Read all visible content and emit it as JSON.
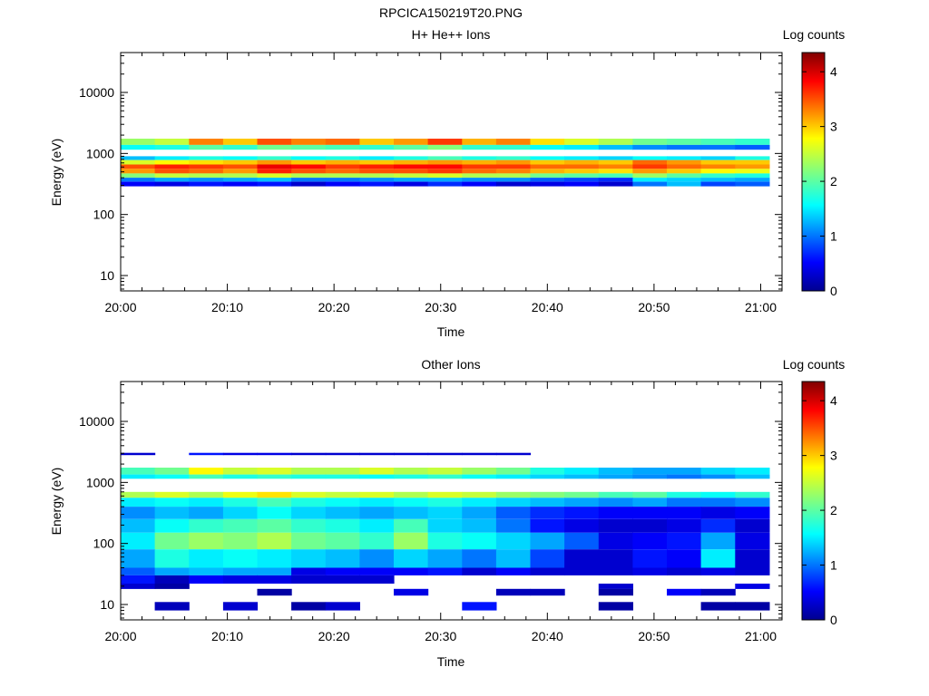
{
  "figure": {
    "filename": "RPCICA150219T20.PNG"
  },
  "chart_data": [
    {
      "type": "heatmap",
      "title": "H+ He++ Ions",
      "xlabel": "Time",
      "ylabel": "Energy (eV)",
      "x_ticks": [
        "20:00",
        "20:10",
        "20:20",
        "20:30",
        "20:40",
        "20:50",
        "21:00"
      ],
      "y_ticks": [
        "10",
        "100",
        "1000",
        "10000"
      ],
      "y_scale": "log",
      "ylim": [
        5.6,
        45000
      ],
      "xlim": [
        "20:00",
        "21:02"
      ],
      "colorbar": {
        "label": "Log counts",
        "ticks": [
          "0",
          "1",
          "2",
          "3",
          "4"
        ],
        "range": [
          0,
          4.35
        ],
        "colormap": "jet"
      },
      "time_bins": 19,
      "time_bin_start_minutes": 0,
      "time_bin_width_minutes": 3.2,
      "energy_bands": [
        {
          "e_low": 1380,
          "e_high": 1750,
          "values": [
            2.3,
            2.5,
            3.3,
            3.0,
            3.5,
            3.3,
            3.4,
            3.0,
            3.2,
            3.6,
            3.1,
            3.3,
            2.9,
            2.6,
            2.4,
            2.1,
            2.0,
            1.9,
            1.8
          ]
        },
        {
          "e_low": 1150,
          "e_high": 1380,
          "values": [
            1.6,
            1.7,
            2.0,
            1.8,
            2.1,
            2.0,
            1.9,
            1.8,
            2.0,
            2.2,
            1.8,
            1.8,
            1.6,
            1.5,
            1.3,
            1.1,
            1.0,
            1.0,
            0.9
          ]
        },
        {
          "e_low": 780,
          "e_high": 900,
          "values": [
            1.3,
            1.5,
            1.7,
            1.6,
            1.8,
            1.6,
            1.7,
            1.5,
            1.7,
            1.9,
            1.7,
            1.8,
            1.6,
            1.5,
            1.4,
            1.6,
            1.5,
            1.4,
            1.7
          ]
        },
        {
          "e_low": 660,
          "e_high": 780,
          "values": [
            2.6,
            2.8,
            2.9,
            3.0,
            3.2,
            3.0,
            3.1,
            3.0,
            3.1,
            3.2,
            3.1,
            3.2,
            3.0,
            3.1,
            3.0,
            3.4,
            3.2,
            3.0,
            3.0
          ]
        },
        {
          "e_low": 560,
          "e_high": 660,
          "values": [
            3.5,
            3.7,
            3.6,
            3.5,
            3.9,
            3.8,
            3.6,
            3.7,
            3.8,
            3.8,
            3.6,
            3.6,
            3.4,
            3.4,
            3.3,
            3.6,
            3.4,
            3.3,
            3.2
          ]
        },
        {
          "e_low": 470,
          "e_high": 560,
          "values": [
            3.2,
            3.5,
            3.4,
            3.2,
            3.7,
            3.5,
            3.4,
            3.5,
            3.5,
            3.6,
            3.4,
            3.3,
            3.1,
            3.0,
            2.9,
            3.2,
            3.0,
            2.8,
            2.7
          ]
        },
        {
          "e_low": 400,
          "e_high": 470,
          "values": [
            2.2,
            2.5,
            2.4,
            2.4,
            2.6,
            2.4,
            2.4,
            2.4,
            2.5,
            2.6,
            2.4,
            2.4,
            2.1,
            2.0,
            1.9,
            2.3,
            2.0,
            1.8,
            1.7
          ]
        },
        {
          "e_low": 345,
          "e_high": 400,
          "values": [
            1.0,
            1.2,
            1.1,
            1.2,
            1.3,
            1.0,
            1.0,
            1.1,
            1.2,
            1.2,
            1.1,
            1.1,
            0.9,
            0.8,
            0.7,
            1.5,
            1.4,
            1.3,
            1.2
          ]
        },
        {
          "e_low": 290,
          "e_high": 345,
          "values": [
            0.5,
            0.4,
            0.6,
            0.5,
            0.6,
            0.3,
            0.5,
            0.6,
            0.4,
            0.7,
            0.5,
            0.3,
            0.4,
            0.5,
            0.3,
            1.0,
            1.3,
            0.8,
            0.9
          ]
        }
      ]
    },
    {
      "type": "heatmap",
      "title": "Other Ions",
      "xlabel": "Time",
      "ylabel": "Energy (eV)",
      "x_ticks": [
        "20:00",
        "20:10",
        "20:20",
        "20:30",
        "20:40",
        "20:50",
        "21:00"
      ],
      "y_ticks": [
        "10",
        "100",
        "1000",
        "10000"
      ],
      "y_scale": "log",
      "ylim": [
        5.6,
        45000
      ],
      "xlim": [
        "20:00",
        "21:02"
      ],
      "colorbar": {
        "label": "Log counts",
        "ticks": [
          "0",
          "1",
          "2",
          "3",
          "4"
        ],
        "range": [
          0,
          4.35
        ],
        "colormap": "jet"
      },
      "time_bins": 19,
      "time_bin_start_minutes": 0,
      "time_bin_width_minutes": 3.2,
      "energy_bands": [
        {
          "e_low": 2800,
          "e_high": 3050,
          "values": [
            0.3,
            null,
            0.6,
            0.4,
            0.4,
            0.3,
            0.3,
            0.3,
            0.3,
            0.3,
            0.3,
            0.3,
            null,
            null,
            null,
            null,
            null,
            null,
            null
          ]
        },
        {
          "e_low": 1350,
          "e_high": 1750,
          "values": [
            1.9,
            2.1,
            2.8,
            2.5,
            2.6,
            2.4,
            2.4,
            2.6,
            2.4,
            2.5,
            2.3,
            2.1,
            1.7,
            1.5,
            1.3,
            1.2,
            1.2,
            1.4,
            1.5
          ]
        },
        {
          "e_low": 1150,
          "e_high": 1350,
          "values": [
            1.5,
            1.6,
            1.9,
            1.7,
            1.8,
            1.7,
            1.7,
            1.6,
            1.7,
            1.8,
            1.6,
            1.5,
            1.4,
            1.3,
            1.2,
            1.1,
            1.0,
            1.1,
            1.3
          ]
        },
        {
          "e_low": 560,
          "e_high": 700,
          "values": [
            2.4,
            2.6,
            2.4,
            2.7,
            2.9,
            2.6,
            2.5,
            2.6,
            2.4,
            2.6,
            2.5,
            2.3,
            2.2,
            2.1,
            1.9,
            2.0,
            1.7,
            1.6,
            1.8
          ]
        },
        {
          "e_low": 400,
          "e_high": 560,
          "values": [
            1.5,
            1.6,
            1.5,
            1.7,
            1.9,
            1.7,
            1.6,
            1.5,
            1.6,
            1.7,
            1.5,
            1.4,
            1.3,
            1.2,
            1.1,
            1.2,
            1.0,
            1.0,
            1.1
          ]
        },
        {
          "e_low": 250,
          "e_high": 400,
          "values": [
            1.1,
            1.3,
            1.2,
            1.4,
            1.6,
            1.4,
            1.3,
            1.2,
            1.3,
            1.4,
            1.2,
            0.9,
            0.7,
            0.6,
            0.5,
            0.5,
            0.5,
            0.4,
            0.5
          ]
        },
        {
          "e_low": 150,
          "e_high": 250,
          "values": [
            1.3,
            1.6,
            1.8,
            1.9,
            2.0,
            1.8,
            1.7,
            1.5,
            1.9,
            1.4,
            1.3,
            1.0,
            0.6,
            0.4,
            0.3,
            0.3,
            0.4,
            0.7,
            0.3
          ]
        },
        {
          "e_low": 80,
          "e_high": 150,
          "values": [
            1.5,
            2.1,
            2.3,
            2.2,
            2.4,
            2.1,
            2.0,
            1.8,
            2.3,
            1.7,
            1.6,
            1.4,
            1.2,
            0.9,
            0.4,
            0.5,
            0.6,
            1.2,
            0.4
          ]
        },
        {
          "e_low": 40,
          "e_high": 80,
          "values": [
            1.2,
            1.7,
            1.5,
            1.6,
            1.5,
            1.4,
            1.3,
            1.1,
            1.4,
            1.2,
            1.0,
            1.3,
            0.8,
            0.3,
            0.3,
            0.6,
            0.5,
            1.5,
            0.3
          ]
        },
        {
          "e_low": 30,
          "e_high": 40,
          "values": [
            0.9,
            1.2,
            1.3,
            1.2,
            1.2,
            0.4,
            0.5,
            0.5,
            0.5,
            0.6,
            0.3,
            0.5,
            0.3,
            0.3,
            0.3,
            0.4,
            0.3,
            0.4,
            0.3
          ]
        },
        {
          "e_low": 22,
          "e_high": 30,
          "values": [
            0.6,
            0.2,
            0.5,
            0.4,
            0.4,
            0.3,
            0.3,
            0.3,
            null,
            null,
            null,
            null,
            null,
            null,
            null,
            null,
            null,
            null,
            null
          ]
        },
        {
          "e_low": 18,
          "e_high": 22,
          "values": [
            0.3,
            0.1,
            null,
            null,
            null,
            null,
            null,
            null,
            null,
            null,
            null,
            null,
            null,
            null,
            0.3,
            null,
            null,
            null,
            0.4
          ]
        },
        {
          "e_low": 14,
          "e_high": 18,
          "values": [
            null,
            null,
            null,
            null,
            0.1,
            null,
            null,
            null,
            0.4,
            null,
            null,
            0.2,
            0.2,
            null,
            0.1,
            null,
            0.5,
            0.2,
            null
          ]
        },
        {
          "e_low": 8,
          "e_high": 11,
          "values": [
            null,
            0.2,
            null,
            0.3,
            null,
            0.1,
            0.3,
            null,
            null,
            null,
            0.6,
            null,
            null,
            null,
            0.1,
            null,
            null,
            0.1,
            0.1
          ]
        }
      ]
    }
  ]
}
